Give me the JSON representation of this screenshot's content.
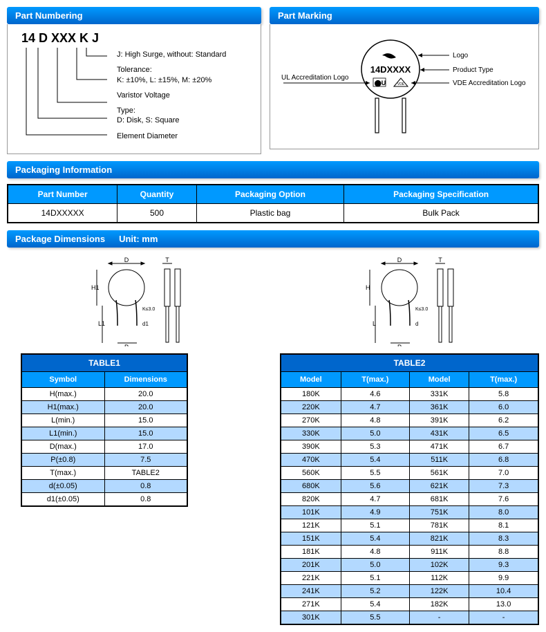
{
  "headers": {
    "part_numbering": "Part Numbering",
    "part_marking": "Part Marking",
    "packaging_info": "Packaging Information",
    "package_dims": "Package Dimensions",
    "unit": "Unit: mm"
  },
  "part_number": {
    "code": "14 D XXX K J",
    "rows": [
      {
        "title": "",
        "desc": "J: High Surge, without: Standard"
      },
      {
        "title": "Tolerance:",
        "desc": "K:   ±10%,   L:   ±15%,   M:   ±20%"
      },
      {
        "title": "",
        "desc": "Varistor Voltage"
      },
      {
        "title": "Type:",
        "desc": "D: Disk, S: Square"
      },
      {
        "title": "",
        "desc": "Element Diameter"
      }
    ]
  },
  "marking": {
    "product_type": "14DXXXX",
    "labels": {
      "logo": "Logo",
      "product_type": "Product Type",
      "ul": "UL Accreditation Logo",
      "vde": "VDE Accreditation Logo"
    }
  },
  "packaging": {
    "headers": [
      "Part Number",
      "Quantity",
      "Packaging Option",
      "Packaging Specification"
    ],
    "row": [
      "14DXXXXX",
      "500",
      "Plastic bag",
      "Bulk Pack"
    ]
  },
  "table1": {
    "title": "TABLE1",
    "cols": [
      "Symbol",
      "Dimensions"
    ],
    "rows": [
      [
        "H(max.)",
        "20.0"
      ],
      [
        "H1(max.)",
        "20.0"
      ],
      [
        "L(min.)",
        "15.0"
      ],
      [
        "L1(min.)",
        "15.0"
      ],
      [
        "D(max.)",
        "17.0"
      ],
      [
        "P(±0.8)",
        "7.5"
      ],
      [
        "T(max.)",
        "TABLE2"
      ],
      [
        "d(±0.05)",
        "0.8"
      ],
      [
        "d1(±0.05)",
        "0.8"
      ]
    ]
  },
  "table2": {
    "title": "TABLE2",
    "cols": [
      "Model",
      "T(max.)",
      "Model",
      "T(max.)"
    ],
    "rows": [
      [
        "180K",
        "4.6",
        "331K",
        "5.8"
      ],
      [
        "220K",
        "4.7",
        "361K",
        "6.0"
      ],
      [
        "270K",
        "4.8",
        "391K",
        "6.2"
      ],
      [
        "330K",
        "5.0",
        "431K",
        "6.5"
      ],
      [
        "390K",
        "5.3",
        "471K",
        "6.7"
      ],
      [
        "470K",
        "5.4",
        "511K",
        "6.8"
      ],
      [
        "560K",
        "5.5",
        "561K",
        "7.0"
      ],
      [
        "680K",
        "5.6",
        "621K",
        "7.3"
      ],
      [
        "820K",
        "4.7",
        "681K",
        "7.6"
      ],
      [
        "101K",
        "4.9",
        "751K",
        "8.0"
      ],
      [
        "121K",
        "5.1",
        "781K",
        "8.1"
      ],
      [
        "151K",
        "5.4",
        "821K",
        "8.3"
      ],
      [
        "181K",
        "4.8",
        "911K",
        "8.8"
      ],
      [
        "201K",
        "5.0",
        "102K",
        "9.3"
      ],
      [
        "221K",
        "5.1",
        "112K",
        "9.9"
      ],
      [
        "241K",
        "5.2",
        "122K",
        "10.4"
      ],
      [
        "271K",
        "5.4",
        "182K",
        "13.0"
      ],
      [
        "301K",
        "5.5",
        "-",
        "-"
      ]
    ]
  },
  "colors": {
    "header_blue": "#0099ff",
    "dark_blue": "#0066cc",
    "alt_row": "#b3d9ff"
  }
}
